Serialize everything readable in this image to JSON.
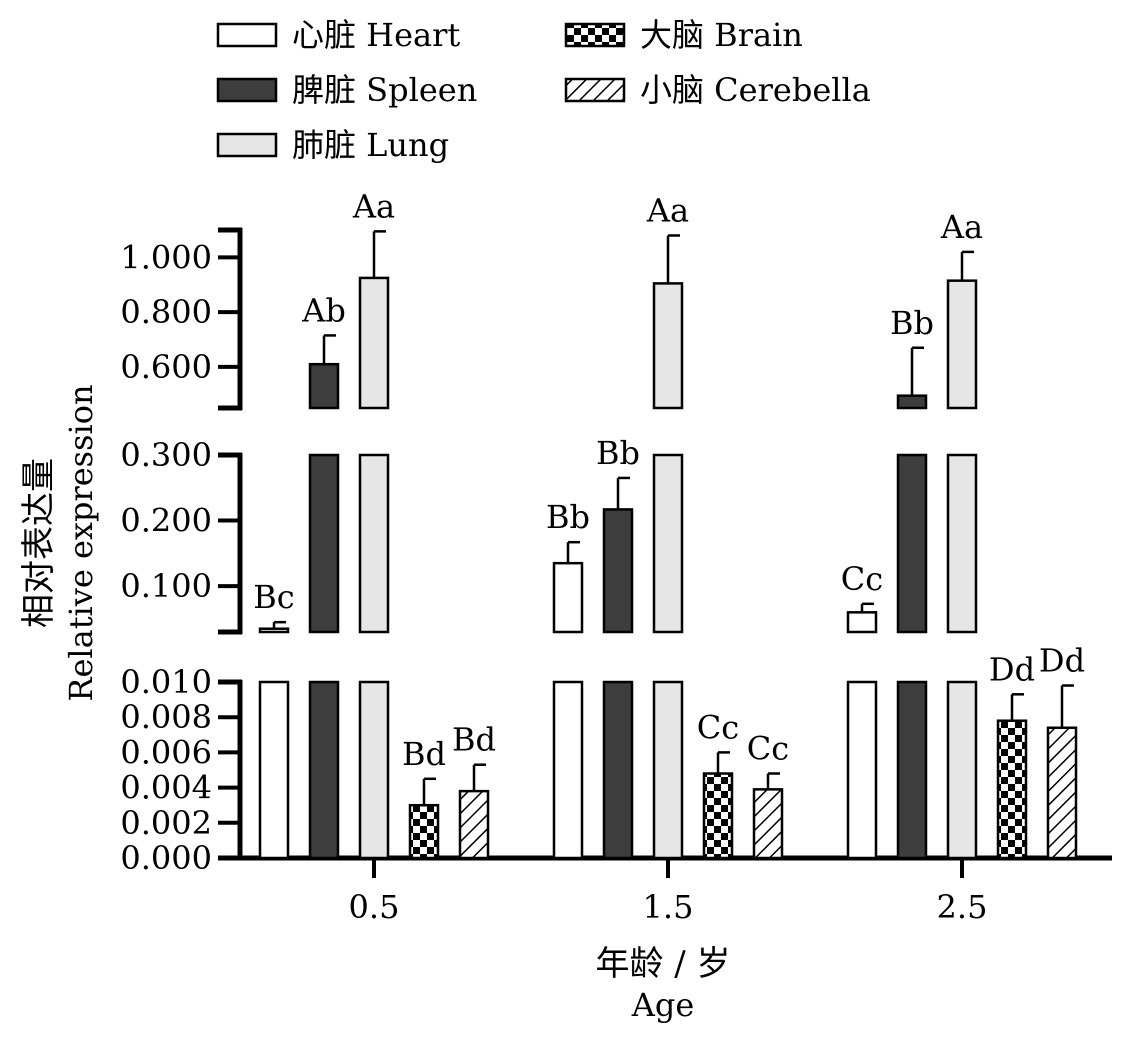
{
  "chart_data": {
    "type": "bar",
    "title": "",
    "x_title_zh": "年龄 / 岁",
    "x_title_en": "Age",
    "y_title_zh": "相对表达量",
    "y_title_en": "Relative expression",
    "categories": [
      "0.5",
      "1.5",
      "2.5"
    ],
    "series": [
      {
        "name_zh": "心脏",
        "name_en": "Heart",
        "fill": "#ffffff",
        "pattern": "none",
        "values": [
          0.035,
          0.135,
          0.06
        ],
        "errors": [
          0.01,
          0.032,
          0.013
        ],
        "labels": [
          "Bc",
          "Bb",
          "Cc"
        ]
      },
      {
        "name_zh": "脾脏",
        "name_en": "Spleen",
        "fill": "#3d3d3d",
        "pattern": "none",
        "values": [
          0.61,
          0.217,
          0.495
        ],
        "errors": [
          0.105,
          0.048,
          0.175
        ],
        "labels": [
          "Ab",
          "Bb",
          "Bb"
        ]
      },
      {
        "name_zh": "肺脏",
        "name_en": "Lung",
        "fill": "#e6e6e6",
        "pattern": "none",
        "values": [
          0.925,
          0.905,
          0.915
        ],
        "errors": [
          0.17,
          0.175,
          0.105
        ],
        "labels": [
          "Aa",
          "Aa",
          "Aa"
        ]
      },
      {
        "name_zh": "大脑",
        "name_en": "Brain",
        "fill": "#ffffff",
        "pattern": "checker",
        "values": [
          0.003,
          0.0048,
          0.0078
        ],
        "errors": [
          0.0015,
          0.0012,
          0.0015
        ],
        "labels": [
          "Bd",
          "Cc",
          "Dd"
        ]
      },
      {
        "name_zh": "小脑",
        "name_en": "Cerebella",
        "fill": "#ffffff",
        "pattern": "hatch",
        "values": [
          0.0038,
          0.0039,
          0.0074
        ],
        "errors": [
          0.0015,
          0.0009,
          0.0024
        ],
        "labels": [
          "Bd",
          "Cc",
          "Dd"
        ]
      }
    ],
    "y_segments": [
      {
        "range": [
          0,
          0.01
        ],
        "ticks": [
          "0.000",
          "0.002",
          "0.004",
          "0.006",
          "0.008",
          "0.010"
        ]
      },
      {
        "range": [
          0.03,
          0.3
        ],
        "ticks": [
          "0.100",
          "0.200",
          "0.300"
        ]
      },
      {
        "range": [
          0.45,
          1.1
        ],
        "ticks": [
          "0.600",
          "0.800",
          "1.000"
        ]
      }
    ],
    "broken_y_axis": true,
    "legend_position": "top-left",
    "grid": false
  }
}
